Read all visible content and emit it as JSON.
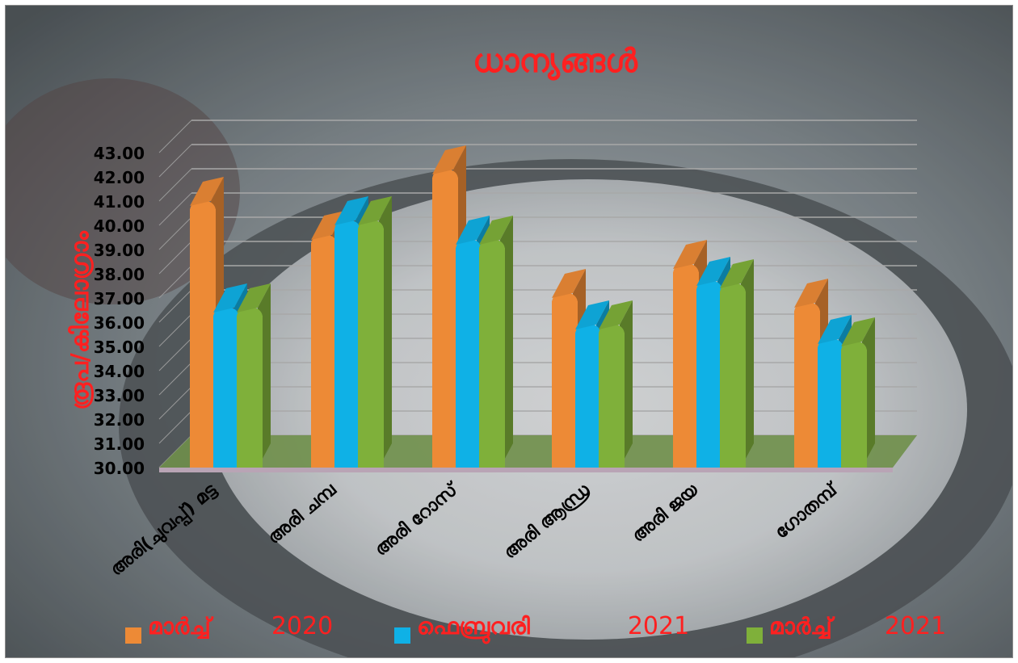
{
  "chart_data": {
    "type": "bar",
    "title": "ധാന്യങ്ങൾ",
    "ylabel": "രൂപ/കിലോഗ്രാം",
    "xlabel": "",
    "ylim": [
      30,
      43
    ],
    "yticks": [
      "30.00",
      "31.00",
      "32.00",
      "33.00",
      "34.00",
      "35.00",
      "36.00",
      "37.00",
      "38.00",
      "39.00",
      "40.00",
      "41.00",
      "42.00",
      "43.00"
    ],
    "categories": [
      "അരി(ചുവപ്പ്) മട്ട",
      "അരി ചമ്പ",
      "അരി റോസ്",
      "അരി ആന്ധ്ര",
      "അരി ജയ",
      "ഗോതമ്പ്"
    ],
    "series": [
      {
        "name": "മാർച്ച്",
        "year": "2020",
        "color": "#ed8a36",
        "values": [
          41.0,
          39.6,
          42.3,
          37.2,
          38.4,
          36.8
        ]
      },
      {
        "name": "ഫെബ്രുവരി",
        "year": "2021",
        "color": "#0fb1e6",
        "values": [
          36.6,
          40.2,
          39.4,
          35.9,
          37.7,
          35.3
        ]
      },
      {
        "name": "മാർച്ച്",
        "year": "2021",
        "color": "#7fb03a",
        "values": [
          36.6,
          40.2,
          39.4,
          35.9,
          37.6,
          35.2
        ]
      }
    ],
    "grid": true,
    "legend": "bottom",
    "title_color": "#ff2020",
    "ylabel_color": "#ff2020",
    "legend_text_color": "#ff2020"
  }
}
